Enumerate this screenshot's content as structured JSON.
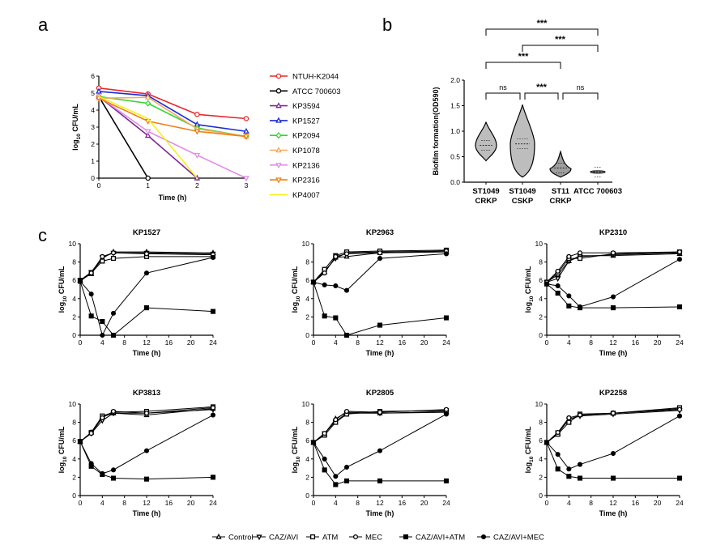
{
  "panel_labels": {
    "a": "a",
    "b": "b",
    "c": "c"
  },
  "chart_data": [
    {
      "type": "line",
      "panel": "a",
      "title": "",
      "xlabel": "Time (h)",
      "ylabel_main": "log",
      "ylabel_sub": "10",
      "ylabel_rest": " CFU/mL",
      "x": [
        0,
        1,
        2,
        3
      ],
      "xlim": [
        0,
        3
      ],
      "ylim": [
        0,
        6
      ],
      "xticks": [
        "0",
        "1",
        "2",
        "3"
      ],
      "yticks": [
        "0",
        "1",
        "2",
        "3",
        "4",
        "5",
        "6"
      ],
      "series": [
        {
          "name": "NTUH-K2044",
          "color": "#e8262a",
          "marker": "circle-open",
          "values": [
            5.3,
            4.95,
            3.75,
            3.5
          ]
        },
        {
          "name": "ATCC 700603",
          "color": "#000000",
          "marker": "circle-open",
          "values": [
            4.8,
            0,
            null,
            null
          ]
        },
        {
          "name": "KP3594",
          "color": "#7b2a99",
          "marker": "triangle-open",
          "values": [
            4.8,
            2.5,
            0,
            null
          ]
        },
        {
          "name": "KP1527",
          "color": "#1a2cd6",
          "marker": "triangle-open",
          "values": [
            5.1,
            4.85,
            3.15,
            2.75
          ]
        },
        {
          "name": "KP2094",
          "color": "#33d633",
          "marker": "diamond-open",
          "values": [
            4.8,
            4.4,
            2.95,
            2.45
          ]
        },
        {
          "name": "KP1078",
          "color": "#f5a95c",
          "marker": "triangle-open",
          "values": [
            4.7,
            4.75,
            2.9,
            2.45
          ]
        },
        {
          "name": "KP2136",
          "color": "#e48ee6",
          "marker": "triangledown-open",
          "values": [
            4.8,
            2.75,
            1.35,
            0
          ]
        },
        {
          "name": "KP2316",
          "color": "#f07f13",
          "marker": "triangledown-open",
          "values": [
            4.7,
            3.35,
            2.75,
            2.45
          ]
        },
        {
          "name": "KP4007",
          "color": "#f4f11a",
          "marker": "none",
          "values": [
            4.8,
            3.5,
            0,
            null
          ]
        }
      ]
    },
    {
      "type": "violin",
      "panel": "b",
      "ylabel": "Biofilm formation(OD590)",
      "ylim": [
        0,
        2.0
      ],
      "yticks": [
        "0.0",
        "0.5",
        "1.0",
        "1.5",
        "2.0"
      ],
      "categories": [
        {
          "line1": "ST1049",
          "line2": "CRKP",
          "median": 0.72,
          "min": 0.42,
          "max": 1.18,
          "fill": "#bdbdbd"
        },
        {
          "line1": "ST1049",
          "line2": "CSKP",
          "median": 0.75,
          "min": 0.1,
          "max": 1.52,
          "fill": "#bdbdbd"
        },
        {
          "line1": "ST11",
          "line2": "CRKP",
          "median": 0.28,
          "min": 0.1,
          "max": 0.6,
          "fill": "#9e9e9e"
        },
        {
          "line1": "ATCC 700603",
          "line2": "",
          "median": 0.2,
          "min": 0.17,
          "max": 0.23,
          "fill": "#e0e0e0"
        }
      ],
      "significance": [
        {
          "label": "***",
          "from": 0,
          "to": 3
        },
        {
          "label": "***",
          "from": 1,
          "to": 3
        },
        {
          "label": "***",
          "from": 0,
          "to": 2
        },
        {
          "label": "ns",
          "from": 0,
          "to": 1
        },
        {
          "label": "***",
          "from": 1,
          "to": 2
        },
        {
          "label": "ns",
          "from": 2,
          "to": 3
        }
      ]
    },
    {
      "type": "line",
      "panel": "c",
      "xlabel": "Time (h)",
      "ylabel_main": "log",
      "ylabel_sub": "10",
      "ylabel_rest": " CFU/mL",
      "x": [
        0,
        2,
        4,
        6,
        12,
        24
      ],
      "xlim": [
        0,
        24
      ],
      "ylim": [
        0,
        10
      ],
      "xticks": [
        "0",
        "4",
        "8",
        "12",
        "16",
        "20",
        "24"
      ],
      "yticks": [
        "0",
        "2",
        "4",
        "6",
        "8",
        "10"
      ],
      "legend": [
        "Control",
        "CAZ/AVI",
        "ATM",
        "MEC",
        "CAZ/AVI+ATM",
        "CAZ/AVI+MEC"
      ],
      "markers": [
        "triangle-open",
        "triangledown-open",
        "square-open",
        "circle-open",
        "square-filled",
        "circle-filled"
      ],
      "subplots": [
        {
          "title": "KP1527",
          "series": [
            [
              6.0,
              6.7,
              8.4,
              9.1,
              9.1,
              9.0
            ],
            [
              6.0,
              6.9,
              8.5,
              9.0,
              9.0,
              8.9
            ],
            [
              6.0,
              6.8,
              8.1,
              8.4,
              8.6,
              8.6
            ],
            [
              5.9,
              6.8,
              8.6,
              9.0,
              8.9,
              8.8
            ],
            [
              5.9,
              2.1,
              1.5,
              0.0,
              3.0,
              2.6
            ],
            [
              5.9,
              4.5,
              0.0,
              2.4,
              6.8,
              8.5
            ]
          ]
        },
        {
          "title": "KP2963",
          "series": [
            [
              5.8,
              6.9,
              8.5,
              8.6,
              9.0,
              9.1
            ],
            [
              5.8,
              7.0,
              8.4,
              9.0,
              9.1,
              9.2
            ],
            [
              5.8,
              7.2,
              8.7,
              9.1,
              9.2,
              9.3
            ],
            [
              5.8,
              6.8,
              8.6,
              8.9,
              9.0,
              9.2
            ],
            [
              5.8,
              2.1,
              1.9,
              0.0,
              1.1,
              1.9
            ],
            [
              5.8,
              5.5,
              5.4,
              4.9,
              8.4,
              8.9
            ]
          ]
        },
        {
          "title": "KP2310",
          "series": [
            [
              5.8,
              6.6,
              8.1,
              8.7,
              8.7,
              8.9
            ],
            [
              5.8,
              6.2,
              8.1,
              8.6,
              8.8,
              9.0
            ],
            [
              5.8,
              6.8,
              8.4,
              8.4,
              8.9,
              9.1
            ],
            [
              5.8,
              7.0,
              8.6,
              9.0,
              9.0,
              9.1
            ],
            [
              5.6,
              4.6,
              3.2,
              3.0,
              3.0,
              3.1
            ],
            [
              5.6,
              5.4,
              4.3,
              3.1,
              4.2,
              8.3
            ]
          ]
        },
        {
          "title": "KP3813",
          "series": [
            [
              5.9,
              6.9,
              8.6,
              9.0,
              8.8,
              9.5
            ],
            [
              5.9,
              6.8,
              8.2,
              9.0,
              9.0,
              9.4
            ],
            [
              5.9,
              6.9,
              8.7,
              9.1,
              9.2,
              9.7
            ],
            [
              5.9,
              6.8,
              8.5,
              9.2,
              9.0,
              9.6
            ],
            [
              5.9,
              3.2,
              2.3,
              1.9,
              1.8,
              2.0
            ],
            [
              5.9,
              3.5,
              2.4,
              2.8,
              4.9,
              8.8
            ]
          ]
        },
        {
          "title": "KP2805",
          "series": [
            [
              5.8,
              6.7,
              8.4,
              9.1,
              9.0,
              9.2
            ],
            [
              5.8,
              6.8,
              8.1,
              9.0,
              9.0,
              9.1
            ],
            [
              5.8,
              6.6,
              8.0,
              8.9,
              9.2,
              9.3
            ],
            [
              5.8,
              6.8,
              8.3,
              9.2,
              9.1,
              9.4
            ],
            [
              5.8,
              2.8,
              1.2,
              1.6,
              1.6,
              1.6
            ],
            [
              5.8,
              4.0,
              2.1,
              3.1,
              4.9,
              8.9
            ]
          ]
        },
        {
          "title": "KP2258",
          "series": [
            [
              5.8,
              6.8,
              8.3,
              8.8,
              9.0,
              9.5
            ],
            [
              5.8,
              6.9,
              8.3,
              8.7,
              8.9,
              9.3
            ],
            [
              5.8,
              6.7,
              8.0,
              8.9,
              9.0,
              9.6
            ],
            [
              5.8,
              6.9,
              8.5,
              8.8,
              9.0,
              9.4
            ],
            [
              5.8,
              2.9,
              2.1,
              1.9,
              1.9,
              1.9
            ],
            [
              5.8,
              4.5,
              2.9,
              3.4,
              4.6,
              8.7
            ]
          ]
        }
      ]
    }
  ]
}
